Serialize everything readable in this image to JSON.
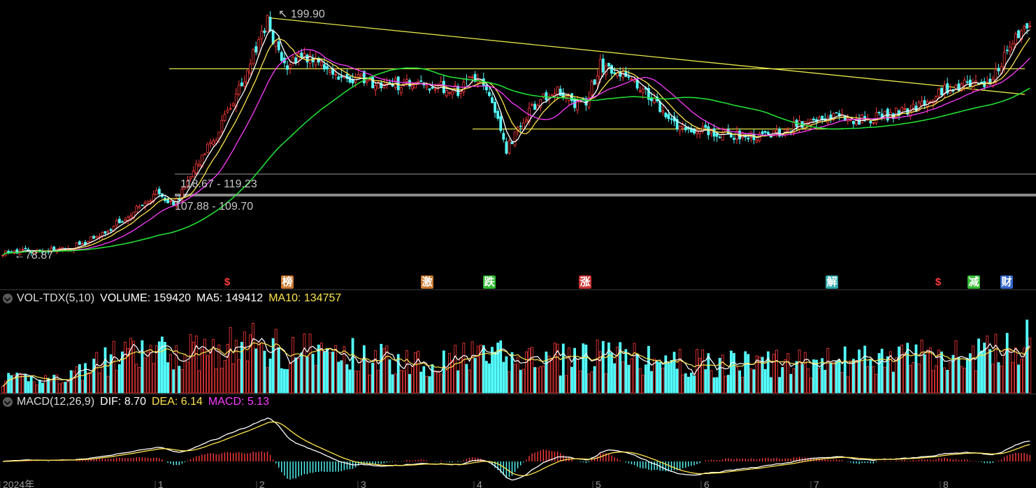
{
  "colors": {
    "up": "#ff3b3b",
    "down": "#54ffff",
    "ma_white": "#ffffff",
    "ma_yellow": "#ffe44d",
    "ma_magenta": "#ff3cff",
    "ma_green": "#22dd33",
    "trend": "#e6e64a",
    "band": "#9a9a9a"
  },
  "chart_data": [
    {
      "type": "candlestick",
      "title": "",
      "annotations": {
        "high": "199.90",
        "low": "78.87",
        "zone1": "118.67 - 119.23",
        "zone2": "107.88 - 109.70"
      },
      "ylim": [
        70,
        206
      ],
      "events": [
        {
          "label": "$",
          "color": "#ff3b3b"
        },
        {
          "label": "榜",
          "color": "#cc7a33"
        },
        {
          "label": "激",
          "color": "#cc7a33"
        },
        {
          "label": "跌",
          "color": "#33bb33"
        },
        {
          "label": "涨",
          "color": "#cc3333"
        },
        {
          "label": "解",
          "color": "#33aaaa"
        },
        {
          "label": "$",
          "color": "#ff3b3b"
        },
        {
          "label": "减",
          "color": "#33bb33"
        },
        {
          "label": "财",
          "color": "#3366cc"
        }
      ],
      "close_anchors": [
        [
          0,
          81
        ],
        [
          15,
          82
        ],
        [
          25,
          84
        ],
        [
          35,
          90
        ],
        [
          45,
          101
        ],
        [
          55,
          112
        ],
        [
          60,
          104
        ],
        [
          62,
          109
        ],
        [
          66,
          118
        ],
        [
          70,
          130
        ],
        [
          75,
          140
        ],
        [
          80,
          155
        ],
        [
          85,
          170
        ],
        [
          90,
          188
        ],
        [
          93,
          199
        ],
        [
          96,
          185
        ],
        [
          100,
          176
        ],
        [
          105,
          180
        ],
        [
          110,
          178
        ],
        [
          115,
          172
        ],
        [
          120,
          168
        ],
        [
          125,
          169
        ],
        [
          130,
          167
        ],
        [
          140,
          166
        ],
        [
          150,
          166
        ],
        [
          160,
          163
        ],
        [
          165,
          170
        ],
        [
          170,
          162
        ],
        [
          175,
          143
        ],
        [
          177,
          133
        ],
        [
          180,
          140
        ],
        [
          185,
          152
        ],
        [
          190,
          160
        ],
        [
          195,
          163
        ],
        [
          200,
          156
        ],
        [
          205,
          158
        ],
        [
          210,
          176
        ],
        [
          215,
          172
        ],
        [
          220,
          167
        ],
        [
          225,
          164
        ],
        [
          230,
          155
        ],
        [
          235,
          146
        ],
        [
          240,
          143
        ],
        [
          250,
          142
        ],
        [
          260,
          140
        ],
        [
          270,
          140
        ],
        [
          280,
          146
        ],
        [
          290,
          150
        ],
        [
          300,
          148
        ],
        [
          310,
          150
        ],
        [
          320,
          154
        ],
        [
          330,
          163
        ],
        [
          340,
          167
        ],
        [
          345,
          164
        ],
        [
          350,
          175
        ],
        [
          355,
          186
        ],
        [
          358,
          193
        ],
        [
          361,
          196
        ]
      ],
      "close_seed": 97
    },
    {
      "type": "bar",
      "title": "VOL-TDX(5,10)",
      "values_text": {
        "volume_label": "VOLUME: 159420",
        "ma5_label": "MA5: 149412",
        "ma10_label": "MA10: 134757"
      },
      "volume_anchors": [
        [
          0,
          40
        ],
        [
          20,
          45
        ],
        [
          30,
          75
        ],
        [
          40,
          110
        ],
        [
          60,
          120
        ],
        [
          75,
          135
        ],
        [
          90,
          145
        ],
        [
          100,
          135
        ],
        [
          115,
          120
        ],
        [
          130,
          105
        ],
        [
          150,
          95
        ],
        [
          170,
          110
        ],
        [
          190,
          100
        ],
        [
          210,
          110
        ],
        [
          230,
          95
        ],
        [
          260,
          85
        ],
        [
          280,
          90
        ],
        [
          300,
          95
        ],
        [
          320,
          110
        ],
        [
          340,
          115
        ],
        [
          361,
          150
        ]
      ],
      "volume_seed": 41
    },
    {
      "type": "line",
      "title": "MACD(12,26,9)",
      "values_text": {
        "dif_label": "DIF: 8.70",
        "dea_label": "DEA: 6.14",
        "macd_label": "MACD: 5.13"
      }
    }
  ],
  "x_axis": {
    "ticks": [
      "2024年",
      "1",
      "2",
      "3",
      "4",
      "5",
      "6",
      "7",
      "8"
    ]
  }
}
